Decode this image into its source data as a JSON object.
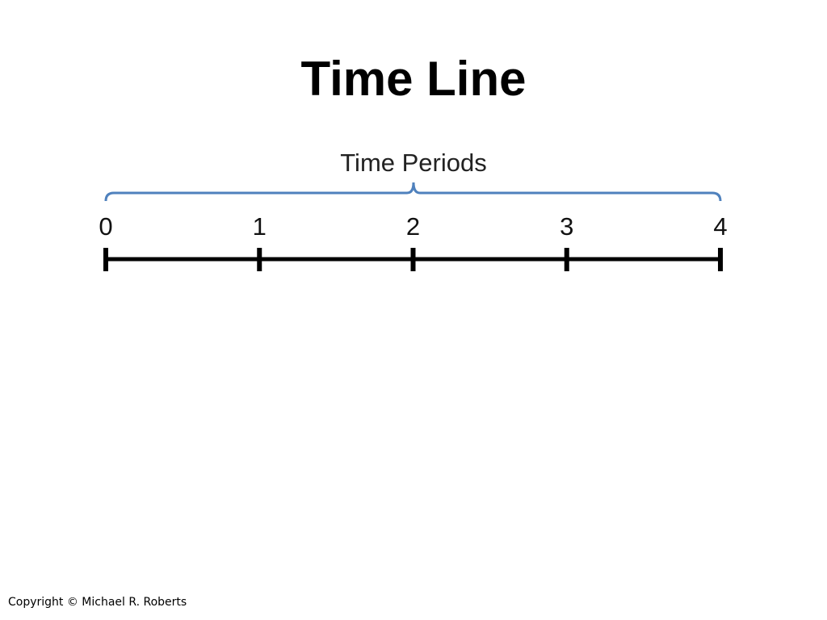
{
  "title": "Time Line",
  "brace_label": "Time Periods",
  "timeline": {
    "ticks": [
      "0",
      "1",
      "2",
      "3",
      "4"
    ]
  },
  "colors": {
    "brace": "#4f81bd",
    "line": "#000000"
  },
  "footer": {
    "copyright": "Copyright © Michael R. Roberts"
  }
}
